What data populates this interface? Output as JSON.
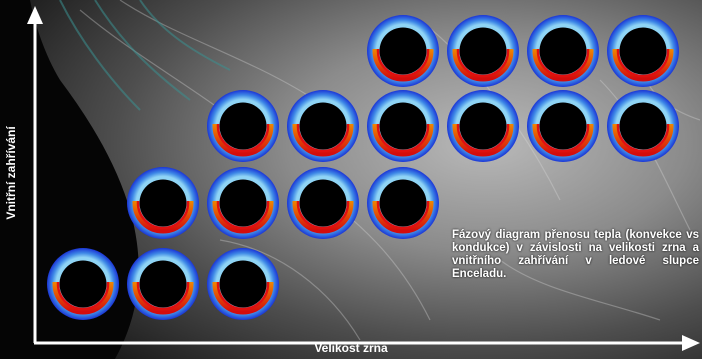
{
  "axes": {
    "x_label": "Velikost zrna",
    "y_label": "Vnitřní zahřívání"
  },
  "caption": "Fázový diagram přenosu tepla (konvekce vs kondukce) v závislosti na velikosti zrna a vnitřního zahřívání v ledové slupce Enceladu.",
  "grid": {
    "rows": [
      {
        "row": 1,
        "count": 4,
        "start_column": 5
      },
      {
        "row": 2,
        "count": 6,
        "start_column": 3
      },
      {
        "row": 3,
        "count": 4,
        "start_column": 2
      },
      {
        "row": 4,
        "count": 3,
        "start_column": 1
      }
    ]
  },
  "colors": {
    "axis": "#ffffff",
    "shell_outer": "#1d3fd8",
    "shell_inner": "#6fc3ee",
    "hot_core": "#e01010",
    "warm": "#f3b200",
    "warm_edge": "#f8e02a"
  }
}
